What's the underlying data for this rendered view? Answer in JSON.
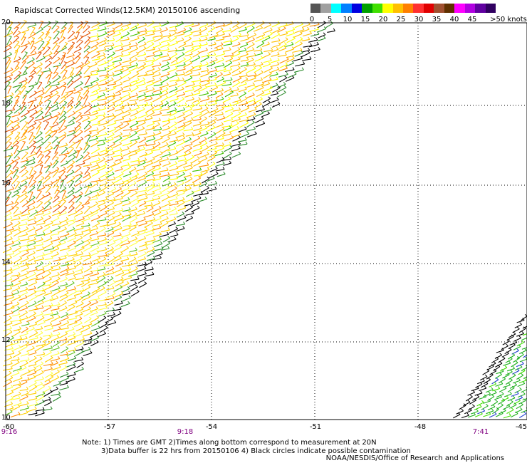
{
  "title": "Rapidscat Corrected Winds(12.5KM) 20150106 ascending",
  "colorbar": {
    "colors": [
      "#555555",
      "#a0a0a0",
      "#00ffff",
      "#0080ff",
      "#0000e0",
      "#00a000",
      "#40e000",
      "#ffff00",
      "#ffc000",
      "#ff8000",
      "#ff3030",
      "#e00000",
      "#a05030",
      "#603000",
      "#ff00ff",
      "#b000e0",
      "#6000a0",
      "#300060"
    ],
    "labels": [
      "0",
      "5",
      "10",
      "15",
      "20",
      "25",
      "30",
      "35",
      "40",
      "45",
      ">50 knots"
    ]
  },
  "axes": {
    "lat_labels": [
      "20",
      "18",
      "16",
      "14",
      "12",
      "10"
    ],
    "lon_labels": [
      "-60",
      "-57",
      "-54",
      "-51",
      "-48",
      "-45"
    ]
  },
  "times": [
    "9:16",
    "9:18",
    "7:41"
  ],
  "notes": {
    "line1": "Note: 1) Times are GMT 2)Times along bottom correspond to measurement at 20N",
    "line2": "3)Data buffer is 22 hrs from 20150106 4) Black circles indicate possible contamination"
  },
  "credit": "NOAA/NESDIS/Office of Research and Applications"
}
